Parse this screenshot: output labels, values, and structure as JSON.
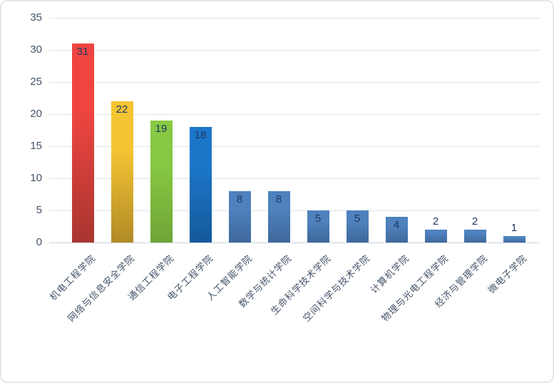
{
  "chart_data": {
    "type": "bar",
    "title": "",
    "xlabel": "",
    "ylabel": "",
    "categories": [
      "机电工程学院",
      "网络与信息安全学院",
      "通信工程学院",
      "电子工程学院",
      "人工智能学院",
      "数学与统计学院",
      "生命科学技术学院",
      "空间科学与技术学院",
      "计算机学院",
      "物理与光电工程学院",
      "经济与管理学院",
      "微电子学院"
    ],
    "values": [
      31,
      22,
      19,
      18,
      8,
      8,
      5,
      5,
      4,
      2,
      2,
      1
    ],
    "value_labels": [
      "31",
      "22",
      "19",
      "18",
      "8",
      "8",
      "5",
      "5",
      "4",
      "2",
      "2",
      "1"
    ],
    "y_ticks": [
      0,
      5,
      10,
      15,
      20,
      25,
      30,
      35
    ],
    "ylim": [
      0,
      35
    ],
    "grid": true,
    "legend_position": "none",
    "bar_colors": [
      {
        "top": "#ee4540",
        "bottom": "#a93530"
      },
      {
        "top": "#f4c433",
        "bottom": "#b18a27"
      },
      {
        "top": "#87c943",
        "bottom": "#6fa437"
      },
      {
        "top": "#1c76c8",
        "bottom": "#14599b"
      },
      {
        "top": "#4e81bd",
        "bottom": "#3f689b"
      },
      {
        "top": "#4e81bd",
        "bottom": "#3f689b"
      },
      {
        "top": "#4e81bd",
        "bottom": "#3f689b"
      },
      {
        "top": "#4e81bd",
        "bottom": "#3f689b"
      },
      {
        "top": "#4e81bd",
        "bottom": "#3f689b"
      },
      {
        "top": "#4e81bd",
        "bottom": "#3f689b"
      },
      {
        "top": "#4e81bd",
        "bottom": "#3f689b"
      },
      {
        "top": "#4e81bd",
        "bottom": "#3f689b"
      }
    ],
    "value_label_color": "#1f3864",
    "tick_label_color": "#44546a",
    "category_label_color": "#44546a",
    "gridline_color": "#dde4eb",
    "axis_line_color": "#ccd5df",
    "inside_label_min_value": 4
  }
}
